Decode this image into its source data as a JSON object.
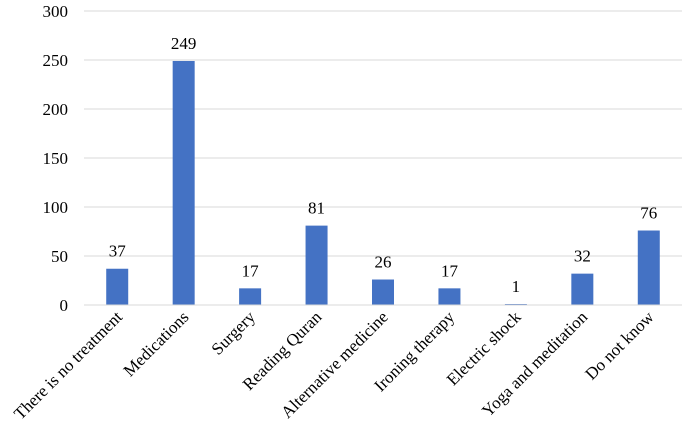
{
  "chart_data": {
    "type": "bar",
    "categories": [
      "There is no treatment",
      "Medications",
      "Surgery",
      "Reading Quran",
      "Alternative medicine",
      "Ironing therapy",
      "Electric shock",
      "Yoga and meditation",
      "Do not know"
    ],
    "values": [
      37,
      249,
      17,
      81,
      26,
      17,
      1,
      32,
      76
    ],
    "data_labels": [
      "37",
      "249",
      "17",
      "81",
      "26",
      "17",
      "1",
      "32",
      "76"
    ],
    "y_ticks": [
      "0",
      "50",
      "100",
      "150",
      "200",
      "250",
      "300"
    ],
    "ylim": [
      0,
      300
    ],
    "grid": true,
    "legend": "none",
    "bar_color": "#4472C4",
    "grid_color": "#D9D9D9"
  }
}
